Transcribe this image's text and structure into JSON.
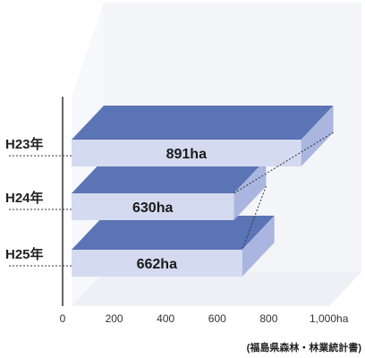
{
  "chart_data": {
    "type": "bar",
    "orientation": "horizontal",
    "style": "3d",
    "categories": [
      "H23年",
      "H24年",
      "H25年"
    ],
    "values": [
      891,
      630,
      662
    ],
    "value_labels": [
      "891ha",
      "630ha",
      "662ha"
    ],
    "x_ticks": [
      "0",
      "200",
      "400",
      "600",
      "800",
      "1,000ha"
    ],
    "xlim": [
      0,
      1000
    ],
    "grid": false,
    "source": "(福島県森林・林業統計書)",
    "colors": {
      "bar_top": "#5b74b5",
      "bar_front": "#d4daf0",
      "bar_side": "#aab6df",
      "wall": "#f4f5f9",
      "floor": "#eef0f6",
      "axis": "#333333",
      "connector": "#333333"
    }
  }
}
